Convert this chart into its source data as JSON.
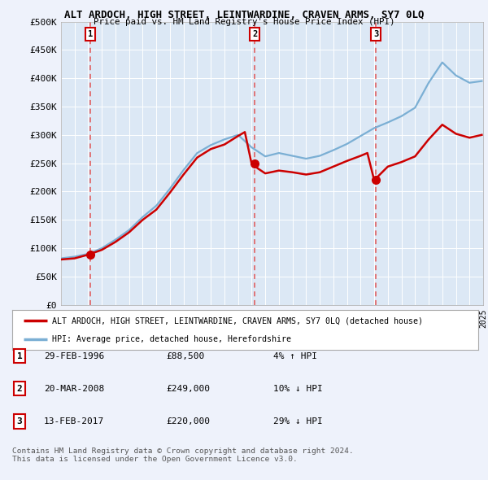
{
  "title": "ALT ARDOCH, HIGH STREET, LEINTWARDINE, CRAVEN ARMS, SY7 0LQ",
  "subtitle": "Price paid vs. HM Land Registry's House Price Index (HPI)",
  "ylim": [
    0,
    500000
  ],
  "yticks": [
    0,
    50000,
    100000,
    150000,
    200000,
    250000,
    300000,
    350000,
    400000,
    450000,
    500000
  ],
  "background_color": "#eef2fb",
  "plot_bg_color": "#dce8f5",
  "grid_color": "#ffffff",
  "red_line_color": "#cc0000",
  "blue_line_color": "#7bafd4",
  "dashed_line_color": "#e05555",
  "sale_points": [
    {
      "date_num": 1996.15,
      "price": 88500,
      "label": "1"
    },
    {
      "date_num": 2008.22,
      "price": 249000,
      "label": "2"
    },
    {
      "date_num": 2017.12,
      "price": 220000,
      "label": "3"
    }
  ],
  "legend_entries": [
    "ALT ARDOCH, HIGH STREET, LEINTWARDINE, CRAVEN ARMS, SY7 0LQ (detached house)",
    "HPI: Average price, detached house, Herefordshire"
  ],
  "table_rows": [
    {
      "num": "1",
      "date": "29-FEB-1996",
      "price": "£88,500",
      "change": "4% ↑ HPI"
    },
    {
      "num": "2",
      "date": "20-MAR-2008",
      "price": "£249,000",
      "change": "10% ↓ HPI"
    },
    {
      "num": "3",
      "date": "13-FEB-2017",
      "price": "£220,000",
      "change": "29% ↓ HPI"
    }
  ],
  "footer": "Contains HM Land Registry data © Crown copyright and database right 2024.\nThis data is licensed under the Open Government Licence v3.0.",
  "xmin": 1994,
  "xmax": 2025,
  "hpi_years": [
    1994,
    1995,
    1996,
    1997,
    1998,
    1999,
    2000,
    2001,
    2002,
    2003,
    2004,
    2005,
    2006,
    2007,
    2008,
    2009,
    2010,
    2011,
    2012,
    2013,
    2014,
    2015,
    2016,
    2017,
    2018,
    2019,
    2020,
    2021,
    2022,
    2023,
    2024,
    2024.9
  ],
  "hpi_values": [
    82000,
    85000,
    90000,
    100000,
    115000,
    132000,
    155000,
    175000,
    205000,
    238000,
    268000,
    282000,
    292000,
    300000,
    278000,
    262000,
    268000,
    263000,
    258000,
    263000,
    273000,
    284000,
    298000,
    312000,
    322000,
    333000,
    348000,
    392000,
    428000,
    405000,
    392000,
    395000
  ],
  "red_years": [
    1994,
    1995,
    1996,
    1997,
    1998,
    1999,
    2000,
    2001,
    2002,
    2003,
    2004,
    2005,
    2006,
    2007,
    2007.5,
    2008,
    2008.5,
    2009,
    2010,
    2011,
    2012,
    2013,
    2014,
    2015,
    2016,
    2016.5,
    2017,
    2017.5,
    2018,
    2019,
    2020,
    2021,
    2022,
    2023,
    2024,
    2024.9
  ],
  "red_values": [
    80000,
    82000,
    88500,
    97000,
    111000,
    128000,
    150000,
    168000,
    198000,
    230000,
    260000,
    275000,
    283000,
    298000,
    305000,
    249000,
    240000,
    232000,
    237000,
    234000,
    230000,
    234000,
    244000,
    254000,
    263000,
    268000,
    220000,
    232000,
    244000,
    252000,
    262000,
    292000,
    318000,
    302000,
    295000,
    300000
  ]
}
